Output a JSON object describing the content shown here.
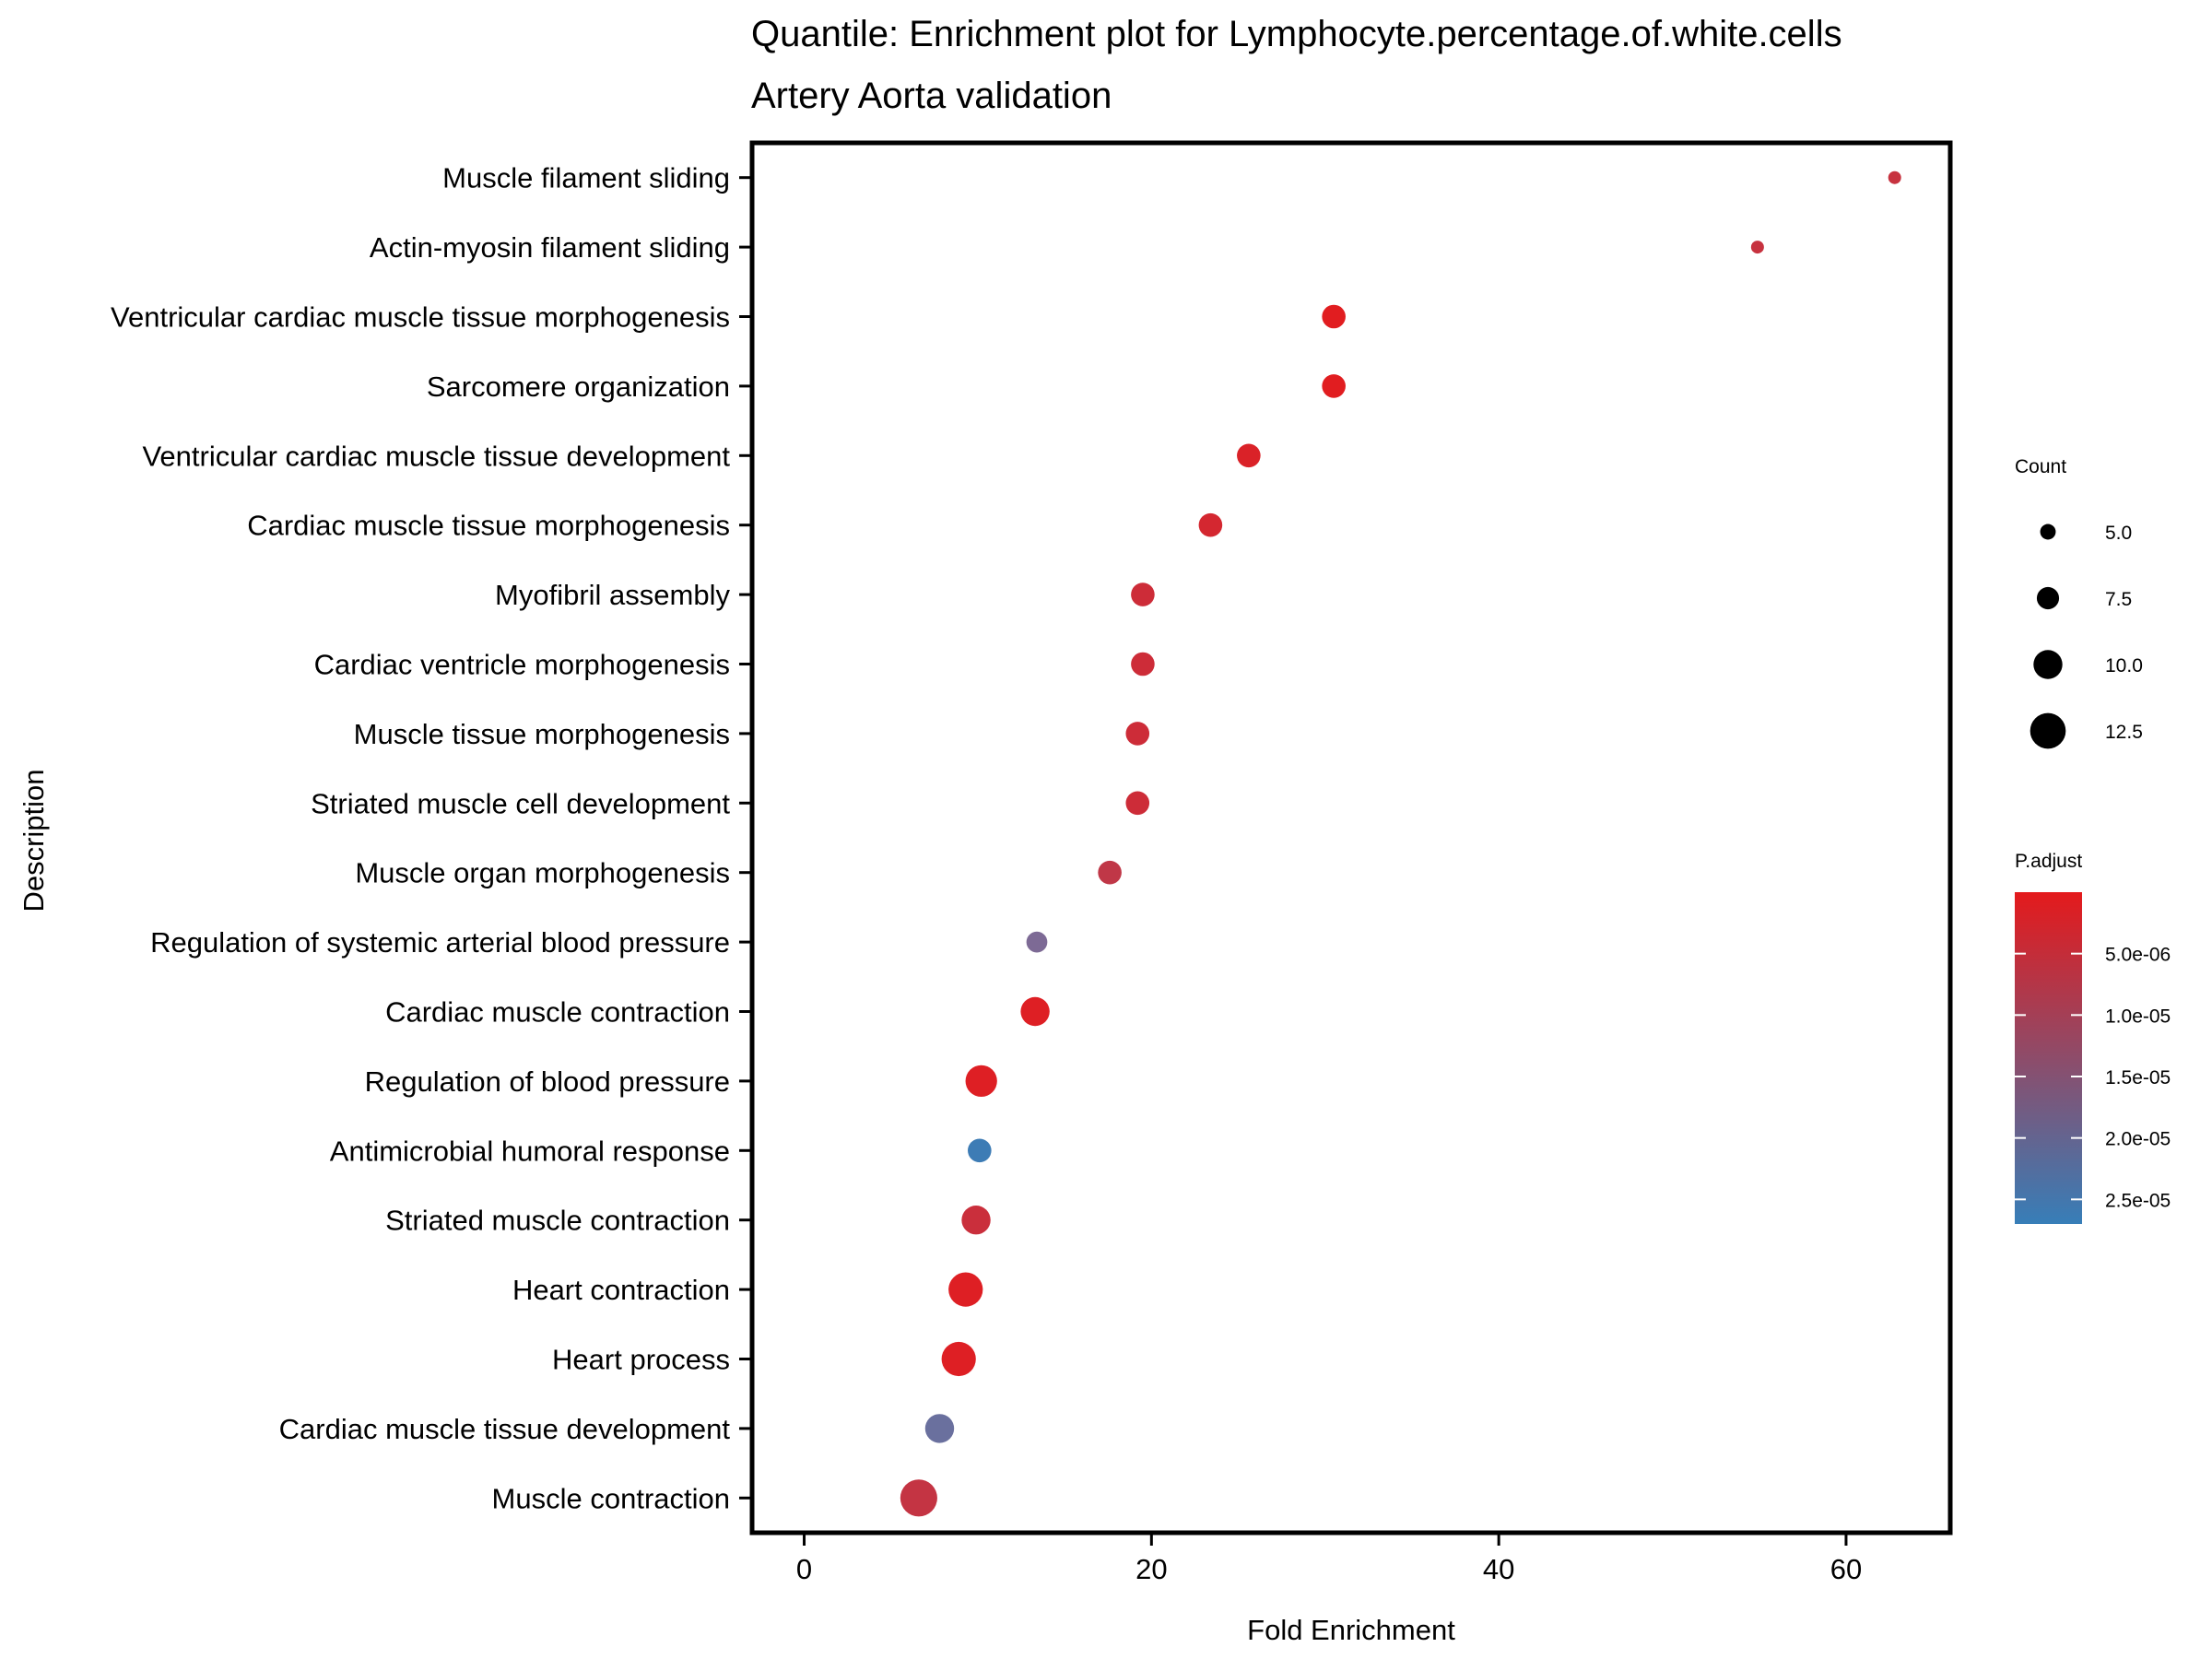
{
  "chart_data": {
    "type": "scatter",
    "title": "Quantile: Enrichment plot for Lymphocyte.percentage.of.white.cells",
    "subtitle": "Artery Aorta validation",
    "xlabel": "Fold Enrichment",
    "ylabel": "Description",
    "xlim": [
      -3,
      66
    ],
    "xticks": [
      0,
      20,
      40,
      60
    ],
    "grid": false,
    "points": [
      {
        "description": "Muscle filament sliding",
        "fold_enrichment": 62.8,
        "count": 4,
        "p_adjust": 4.5e-06
      },
      {
        "description": "Actin-myosin filament sliding",
        "fold_enrichment": 54.9,
        "count": 4,
        "p_adjust": 4.5e-06
      },
      {
        "description": "Ventricular cardiac muscle tissue morphogenesis",
        "fold_enrichment": 30.5,
        "count": 8,
        "p_adjust": 5e-07
      },
      {
        "description": "Sarcomere organization",
        "fold_enrichment": 30.5,
        "count": 8,
        "p_adjust": 5e-07
      },
      {
        "description": "Ventricular cardiac muscle tissue development",
        "fold_enrichment": 25.6,
        "count": 8,
        "p_adjust": 1.5e-06
      },
      {
        "description": "Cardiac muscle tissue morphogenesis",
        "fold_enrichment": 23.4,
        "count": 8,
        "p_adjust": 2.5e-06
      },
      {
        "description": "Myofibril assembly",
        "fold_enrichment": 19.5,
        "count": 8,
        "p_adjust": 3.5e-06
      },
      {
        "description": "Cardiac ventricle morphogenesis",
        "fold_enrichment": 19.5,
        "count": 8,
        "p_adjust": 3.5e-06
      },
      {
        "description": "Muscle tissue morphogenesis",
        "fold_enrichment": 19.2,
        "count": 8,
        "p_adjust": 3.5e-06
      },
      {
        "description": "Striated muscle cell development",
        "fold_enrichment": 19.2,
        "count": 8,
        "p_adjust": 3.5e-06
      },
      {
        "description": "Muscle organ morphogenesis",
        "fold_enrichment": 17.6,
        "count": 8,
        "p_adjust": 5.5e-06
      },
      {
        "description": "Regulation of systemic arterial blood pressure",
        "fold_enrichment": 13.4,
        "count": 7,
        "p_adjust": 1.6e-05
      },
      {
        "description": "Cardiac muscle contraction",
        "fold_enrichment": 13.3,
        "count": 10,
        "p_adjust": 1e-06
      },
      {
        "description": "Regulation of blood pressure",
        "fold_enrichment": 10.2,
        "count": 11,
        "p_adjust": 1e-06
      },
      {
        "description": "Antimicrobial humoral response",
        "fold_enrichment": 10.1,
        "count": 8,
        "p_adjust": 2.6e-05
      },
      {
        "description": "Striated muscle contraction",
        "fold_enrichment": 9.9,
        "count": 10,
        "p_adjust": 4e-06
      },
      {
        "description": "Heart contraction",
        "fold_enrichment": 9.3,
        "count": 12,
        "p_adjust": 1e-06
      },
      {
        "description": "Heart process",
        "fold_enrichment": 8.9,
        "count": 12,
        "p_adjust": 1e-06
      },
      {
        "description": "Cardiac muscle tissue development",
        "fold_enrichment": 7.8,
        "count": 10,
        "p_adjust": 1.9e-05
      },
      {
        "description": "Muscle contraction",
        "fold_enrichment": 6.6,
        "count": 13,
        "p_adjust": 5e-06
      }
    ],
    "size_legend": {
      "title": "Count",
      "entries": [
        {
          "label": "5.0",
          "value": 5.0
        },
        {
          "label": "7.5",
          "value": 7.5
        },
        {
          "label": "10.0",
          "value": 10.0
        },
        {
          "label": "12.5",
          "value": 12.5
        }
      ]
    },
    "color_legend": {
      "title": "P.adjust",
      "range": [
        0,
        2.7e-05
      ],
      "low_color": "#e41a1c",
      "high_color": "#377eb8",
      "ticks": [
        {
          "label": "5.0e-06",
          "value": 5e-06
        },
        {
          "label": "1.0e-05",
          "value": 1e-05
        },
        {
          "label": "1.5e-05",
          "value": 1.5e-05
        },
        {
          "label": "2.0e-05",
          "value": 2e-05
        },
        {
          "label": "2.5e-05",
          "value": 2.5e-05
        }
      ]
    }
  }
}
